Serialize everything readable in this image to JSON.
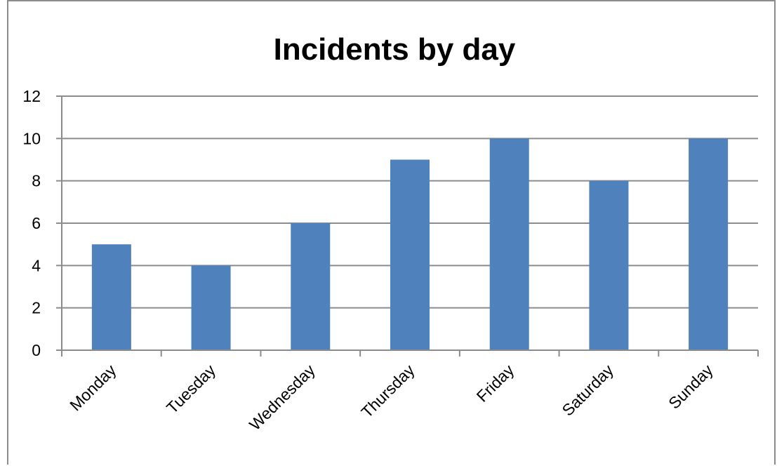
{
  "chart_data": {
    "type": "bar",
    "title": "Incidents by day",
    "categories": [
      "Monday",
      "Tuesday",
      "Wednesday",
      "Thursday",
      "Friday",
      "Saturday",
      "Sunday"
    ],
    "series": [
      {
        "values": [
          5,
          4,
          6,
          9,
          10,
          8,
          10
        ]
      }
    ],
    "xlabel": "",
    "ylabel": "",
    "ylim": [
      0,
      12
    ],
    "yticks": [
      0,
      2,
      4,
      6,
      8,
      10,
      12
    ],
    "grid": true,
    "legend": "none",
    "colors": {
      "bar": "#4f81bd",
      "grid": "#8c8c8c",
      "axis": "#8c8c8c"
    }
  }
}
